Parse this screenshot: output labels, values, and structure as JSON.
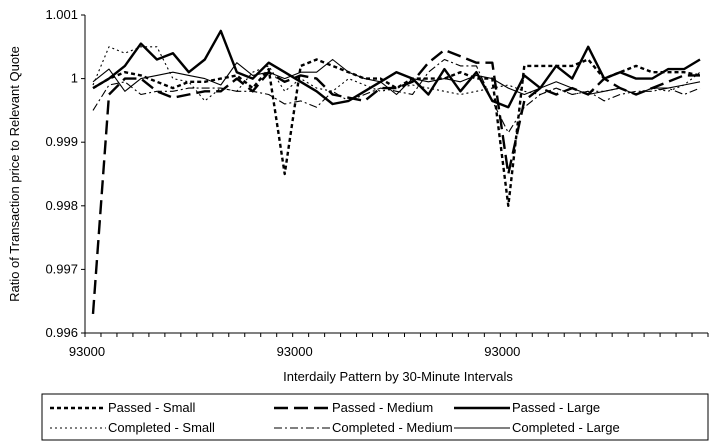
{
  "chart_data": {
    "type": "line",
    "title": "",
    "xlabel": "Interdaily Pattern by 30-Minute Intervals",
    "ylabel": "Ratio of Transaction price to Relevant Quote",
    "ylim": [
      0.996,
      1.001
    ],
    "yticks": [
      "0.996",
      "0.997",
      "0.998",
      "0.999",
      "1",
      "1.001"
    ],
    "yticks_values": [
      0.996,
      0.997,
      0.998,
      0.999,
      1.0,
      1.001
    ],
    "xticks": [
      {
        "label": "93000",
        "index": 0
      },
      {
        "label": "93000",
        "index": 13
      },
      {
        "label": "93000",
        "index": 26
      }
    ],
    "x_count": 39,
    "grid": false,
    "legend": "bottom",
    "series": [
      {
        "name": "Passed - Small",
        "style": "bold-dotted",
        "values": [
          0.99985,
          1.0,
          1.0001,
          1.00005,
          0.99995,
          0.99985,
          0.99995,
          0.99995,
          1.0,
          1.00005,
          0.99985,
          1.00015,
          0.9985,
          1.0002,
          1.0003,
          1.0002,
          1.0001,
          1.0,
          1.0,
          0.99985,
          1.0,
          1.0,
          1.0,
          1.0001,
          1.0,
          1.0,
          0.998,
          1.0002,
          1.0002,
          1.0002,
          1.0002,
          1.0003,
          1.0,
          1.0001,
          1.0002,
          1.0001,
          1.0001,
          1.0001,
          1.00005
        ]
      },
      {
        "name": "Passed - Medium",
        "style": "long-dash",
        "values": [
          0.9963,
          0.99975,
          1.0,
          1.0,
          0.9998,
          0.9997,
          0.99975,
          0.9998,
          0.9998,
          1.0,
          0.9998,
          1.0001,
          0.99995,
          1.00005,
          1.0,
          0.99975,
          0.9997,
          0.99965,
          0.99985,
          0.99985,
          0.99995,
          1.00025,
          1.00045,
          1.00035,
          1.00025,
          1.00025,
          0.9985,
          0.99965,
          0.99985,
          0.99975,
          0.99985,
          0.99975,
          1.0,
          0.99985,
          0.99975,
          0.99985,
          0.99995,
          1.00005,
          1.00005
        ]
      },
      {
        "name": "Passed - Large",
        "style": "bold-solid",
        "values": [
          0.99985,
          1.0,
          1.0002,
          1.00055,
          1.0003,
          1.0004,
          1.0001,
          1.0003,
          1.00075,
          1.0001,
          1.0,
          1.00025,
          1.0001,
          0.99995,
          0.9998,
          0.9996,
          0.99965,
          0.9998,
          0.99995,
          1.0001,
          1.0,
          0.99975,
          1.00015,
          0.9998,
          1.0001,
          0.99965,
          0.99955,
          1.00005,
          0.99985,
          1.0002,
          1.0,
          1.0005,
          1.0,
          1.0001,
          1.0,
          1.0,
          1.00015,
          1.00015,
          1.0003
        ]
      },
      {
        "name": "Completed - Small",
        "style": "dotted",
        "values": [
          0.9999,
          1.0005,
          1.0004,
          1.0005,
          1.0005,
          1.0,
          0.99995,
          0.99965,
          0.99985,
          0.9998,
          1.0001,
          1.0002,
          0.9998,
          1.0,
          0.99985,
          0.9998,
          1.0,
          0.9999,
          0.9998,
          0.99985,
          0.9999,
          0.99985,
          0.9998,
          0.99975,
          0.9998,
          0.99985,
          0.9999,
          0.9998,
          0.99975,
          0.99985,
          0.99975,
          0.9998,
          0.9998,
          0.99985,
          0.99975,
          0.99985,
          0.9998,
          0.9999,
          1.0001
        ]
      },
      {
        "name": "Completed - Medium",
        "style": "dash-dot",
        "values": [
          0.9995,
          0.9999,
          0.99995,
          0.99975,
          0.9998,
          0.9998,
          0.99985,
          0.99985,
          0.99985,
          0.9998,
          0.9998,
          0.99975,
          0.9996,
          0.99965,
          0.99955,
          0.9998,
          0.99965,
          0.99975,
          0.99985,
          0.9998,
          0.99975,
          1.0001,
          1.0003,
          1.0002,
          1.0002,
          0.99965,
          0.99915,
          0.99955,
          0.99975,
          0.99985,
          0.99975,
          0.9998,
          0.99965,
          0.99975,
          0.9998,
          0.9998,
          0.99985,
          0.99975,
          0.99985
        ]
      },
      {
        "name": "Completed - Large",
        "style": "solid",
        "values": [
          0.99995,
          1.00015,
          0.9998,
          1.0,
          1.00005,
          1.0001,
          1.00005,
          1.0,
          0.9999,
          1.00025,
          1.00005,
          1.0001,
          1.0,
          1.0001,
          1.0001,
          1.0003,
          1.0001,
          1.0,
          0.99995,
          0.99975,
          1.0,
          0.99995,
          1.0,
          0.99995,
          1.00005,
          1.0,
          0.99985,
          0.99975,
          0.99985,
          0.99995,
          0.99985,
          0.99975,
          0.9998,
          0.99985,
          0.99975,
          0.99985,
          0.99985,
          0.9999,
          0.99995
        ]
      }
    ]
  }
}
